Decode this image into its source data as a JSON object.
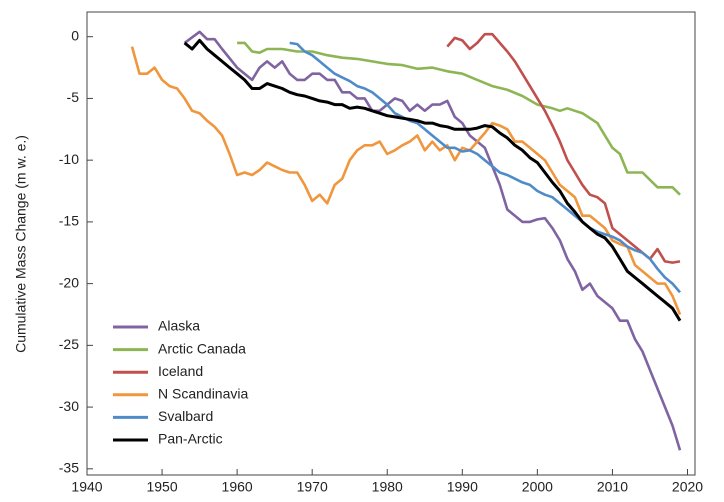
{
  "chart_data": {
    "type": "line",
    "y_label": "Cumulative Mass Change (m w. e.)",
    "xlim": [
      1940,
      2021
    ],
    "xticks": [
      1940,
      1950,
      1960,
      1970,
      1980,
      1990,
      2000,
      2010,
      2020
    ],
    "ylim": [
      -35.5,
      2
    ],
    "yticks": [
      0,
      -5,
      -10,
      -15,
      -20,
      -25,
      -30,
      -35
    ],
    "legend": "lower left",
    "series": [
      {
        "name": "Alaska",
        "color": "#8064a2",
        "x": [
          1953,
          1955,
          1956,
          1957,
          1958,
          1960,
          1961,
          1962,
          1963,
          1964,
          1965,
          1966,
          1967,
          1968,
          1969,
          1970,
          1971,
          1972,
          1973,
          1974,
          1975,
          1976,
          1977,
          1978,
          1979,
          1980,
          1981,
          1982,
          1983,
          1984,
          1985,
          1986,
          1987,
          1988,
          1989,
          1990,
          1991,
          1992,
          1993,
          1994,
          1995,
          1996,
          1997,
          1998,
          1999,
          2000,
          2001,
          2002,
          2003,
          2004,
          2005,
          2006,
          2007,
          2008,
          2009,
          2010,
          2011,
          2012,
          2013,
          2014,
          2015,
          2016,
          2017,
          2018,
          2019
        ],
        "values": [
          -0.5,
          0.4,
          -0.2,
          -0.2,
          -1,
          -2.5,
          -3,
          -3.5,
          -2.5,
          -2,
          -2.5,
          -2,
          -3,
          -3.5,
          -3.5,
          -3,
          -3,
          -3.5,
          -3.5,
          -4.5,
          -4.5,
          -5,
          -5,
          -6,
          -6,
          -5.5,
          -5,
          -5.2,
          -6,
          -5.5,
          -6,
          -5.5,
          -5.5,
          -5.2,
          -6.5,
          -7,
          -8,
          -8.5,
          -9,
          -10.5,
          -12,
          -14,
          -14.5,
          -15,
          -15,
          -14.8,
          -14.7,
          -15.5,
          -16.5,
          -18,
          -19,
          -20.5,
          -20,
          -21,
          -21.5,
          -22,
          -23,
          -23,
          -24.5,
          -25.5,
          -27,
          -28.5,
          -30,
          -31.5,
          -33.5
        ]
      },
      {
        "name": "Arctic Canada",
        "color": "#8db554",
        "x": [
          1960,
          1961,
          1962,
          1963,
          1964,
          1966,
          1968,
          1970,
          1972,
          1974,
          1976,
          1978,
          1980,
          1982,
          1984,
          1986,
          1988,
          1990,
          1992,
          1994,
          1996,
          1998,
          2000,
          2002,
          2003,
          2004,
          2005,
          2006,
          2008,
          2010,
          2011,
          2012,
          2014,
          2016,
          2018,
          2019
        ],
        "values": [
          -0.5,
          -0.5,
          -1.2,
          -1.3,
          -1,
          -1,
          -1.2,
          -1.2,
          -1.5,
          -1.7,
          -1.8,
          -2,
          -2.2,
          -2.3,
          -2.6,
          -2.5,
          -2.8,
          -3,
          -3.5,
          -4,
          -4.3,
          -4.8,
          -5.5,
          -5.8,
          -6,
          -5.8,
          -6,
          -6.2,
          -7,
          -9,
          -9.5,
          -11,
          -11,
          -12.2,
          -12.2,
          -12.8
        ]
      },
      {
        "name": "Iceland",
        "color": "#c0504d",
        "x": [
          1988,
          1989,
          1990,
          1991,
          1992,
          1993,
          1994,
          1995,
          1996,
          1997,
          1998,
          1999,
          2000,
          2001,
          2002,
          2003,
          2004,
          2005,
          2006,
          2007,
          2008,
          2009,
          2010,
          2011,
          2012,
          2013,
          2014,
          2015,
          2016,
          2017,
          2018,
          2019
        ],
        "values": [
          -0.8,
          -0.1,
          -0.3,
          -1,
          -0.5,
          0.2,
          0.2,
          -0.5,
          -1.2,
          -2,
          -3,
          -4,
          -5,
          -6,
          -7.2,
          -8.5,
          -10,
          -11,
          -12,
          -12.8,
          -13,
          -13.5,
          -15.5,
          -16,
          -16.5,
          -17,
          -17.5,
          -18,
          -17.2,
          -18.2,
          -18.3,
          -18.2
        ]
      },
      {
        "name": "N Scandinavia",
        "color": "#f0963c",
        "x": [
          1946,
          1947,
          1948,
          1949,
          1950,
          1951,
          1952,
          1953,
          1954,
          1955,
          1956,
          1957,
          1958,
          1959,
          1960,
          1961,
          1962,
          1963,
          1964,
          1965,
          1966,
          1967,
          1968,
          1969,
          1970,
          1971,
          1972,
          1973,
          1974,
          1975,
          1976,
          1977,
          1978,
          1979,
          1980,
          1981,
          1982,
          1983,
          1984,
          1985,
          1986,
          1987,
          1988,
          1989,
          1990,
          1991,
          1992,
          1993,
          1994,
          1995,
          1996,
          1997,
          1998,
          1999,
          2000,
          2001,
          2002,
          2003,
          2004,
          2005,
          2006,
          2007,
          2008,
          2009,
          2010,
          2011,
          2012,
          2013,
          2014,
          2015,
          2016,
          2017,
          2018,
          2019
        ],
        "values": [
          -0.8,
          -3,
          -3,
          -2.5,
          -3.5,
          -4,
          -4.2,
          -5,
          -6,
          -6.2,
          -6.8,
          -7.3,
          -8,
          -9.5,
          -11.2,
          -11,
          -11.2,
          -10.8,
          -10.2,
          -10.5,
          -10.8,
          -11,
          -11,
          -12,
          -13.3,
          -12.8,
          -13.5,
          -12,
          -11.5,
          -10,
          -9.2,
          -8.8,
          -8.8,
          -8.5,
          -9.5,
          -9.2,
          -8.8,
          -8.5,
          -8,
          -9.2,
          -8.5,
          -9.2,
          -8.8,
          -10,
          -9,
          -9.2,
          -8.5,
          -7.8,
          -7,
          -7.2,
          -7.5,
          -8.5,
          -8.5,
          -9,
          -9.5,
          -10,
          -11,
          -12,
          -12.5,
          -13,
          -14.5,
          -14.5,
          -15,
          -15.5,
          -16.5,
          -16.8,
          -17,
          -18.5,
          -19,
          -19.5,
          -20,
          -20,
          -21,
          -22.5
        ]
      },
      {
        "name": "Svalbard",
        "color": "#4f8bc9",
        "x": [
          1967,
          1968,
          1969,
          1970,
          1971,
          1972,
          1973,
          1974,
          1975,
          1976,
          1977,
          1978,
          1979,
          1980,
          1981,
          1982,
          1983,
          1984,
          1985,
          1986,
          1987,
          1988,
          1989,
          1990,
          1991,
          1992,
          1993,
          1994,
          1995,
          1996,
          1997,
          1998,
          1999,
          2000,
          2001,
          2002,
          2003,
          2004,
          2005,
          2006,
          2007,
          2008,
          2009,
          2010,
          2011,
          2012,
          2013,
          2014,
          2015,
          2016,
          2017,
          2018,
          2019
        ],
        "values": [
          -0.5,
          -0.6,
          -1.2,
          -1.5,
          -2,
          -2.5,
          -3,
          -3.3,
          -3.6,
          -4,
          -4.2,
          -4.5,
          -5,
          -5.5,
          -6.2,
          -6.5,
          -6.8,
          -7,
          -7.5,
          -8,
          -8.5,
          -9,
          -9,
          -9.3,
          -9.2,
          -9.5,
          -10,
          -10.5,
          -11,
          -11.2,
          -11.5,
          -11.8,
          -12,
          -12.5,
          -12.8,
          -13,
          -13.5,
          -14,
          -14.5,
          -15,
          -15.5,
          -15.8,
          -16,
          -16.2,
          -16.5,
          -17,
          -17.3,
          -17.5,
          -18,
          -18.8,
          -19.5,
          -20,
          -20.7
        ]
      },
      {
        "name": "Pan-Arctic",
        "color": "#000000",
        "x": [
          1953,
          1954,
          1955,
          1956,
          1957,
          1958,
          1959,
          1960,
          1961,
          1962,
          1963,
          1964,
          1965,
          1966,
          1967,
          1968,
          1969,
          1970,
          1971,
          1972,
          1973,
          1974,
          1975,
          1976,
          1977,
          1978,
          1979,
          1980,
          1981,
          1982,
          1983,
          1984,
          1985,
          1986,
          1987,
          1988,
          1989,
          1990,
          1991,
          1992,
          1993,
          1994,
          1995,
          1996,
          1997,
          1998,
          1999,
          2000,
          2001,
          2002,
          2003,
          2004,
          2005,
          2006,
          2007,
          2008,
          2009,
          2010,
          2011,
          2012,
          2013,
          2014,
          2015,
          2016,
          2017,
          2018,
          2019
        ],
        "values": [
          -0.5,
          -1,
          -0.3,
          -1,
          -1.5,
          -2,
          -2.5,
          -3,
          -3.5,
          -4.2,
          -4.2,
          -3.8,
          -4,
          -4.2,
          -4.5,
          -4.7,
          -4.8,
          -5,
          -5.2,
          -5.3,
          -5.5,
          -5.5,
          -5.8,
          -5.7,
          -5.8,
          -6,
          -6.2,
          -6.4,
          -6.5,
          -6.6,
          -6.7,
          -6.8,
          -7,
          -7,
          -7.2,
          -7.3,
          -7.5,
          -7.5,
          -7.5,
          -7.4,
          -7.2,
          -7.3,
          -7.8,
          -8.2,
          -8.8,
          -9.2,
          -9.8,
          -10.2,
          -11,
          -11.8,
          -12.5,
          -13.5,
          -14.2,
          -15,
          -15.5,
          -16,
          -16.3,
          -17,
          -18,
          -19,
          -19.5,
          -20,
          -20.5,
          -21,
          -21.5,
          -22,
          -23
        ]
      }
    ]
  }
}
